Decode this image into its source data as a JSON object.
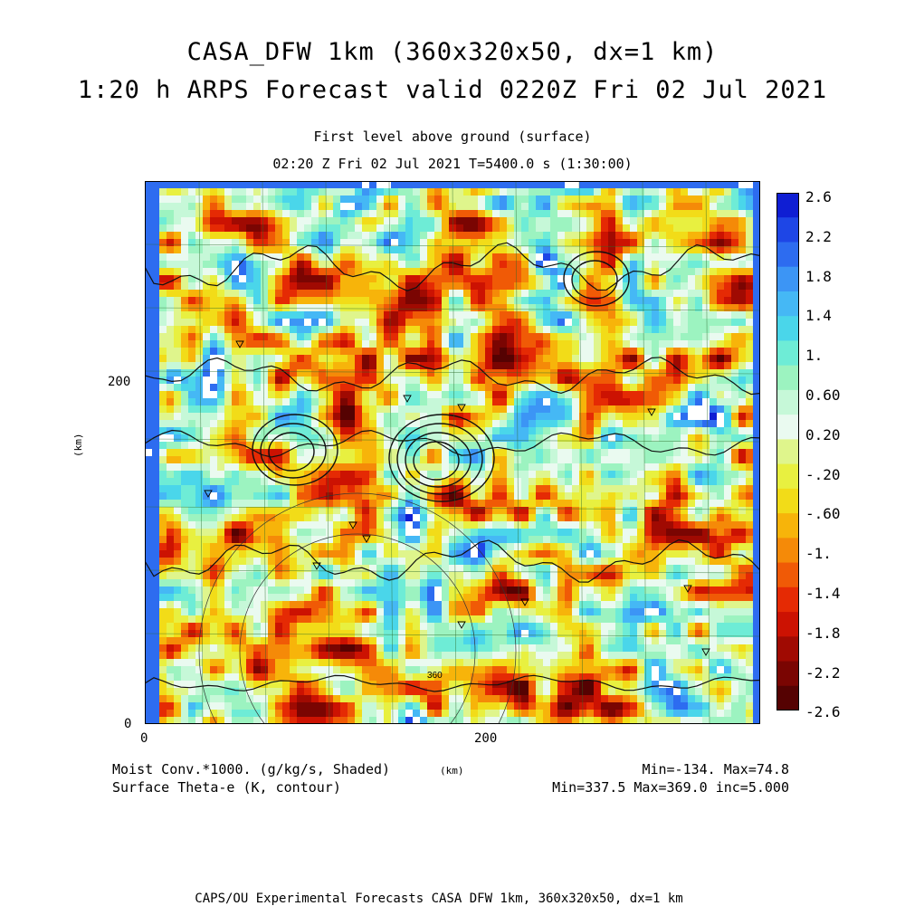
{
  "header": {
    "title_line1": "CASA_DFW 1km (360x320x50, dx=1 km)",
    "title_line2": "1:20 h ARPS Forecast valid 0220Z Fri 02 Jul 2021",
    "subtitle_line1": "First level above ground (surface)",
    "subtitle_line2": "02:20 Z Fri 02 Jul 2021    T=5400.0 s (1:30:00)"
  },
  "axes": {
    "y_unit": "(km)",
    "x_unit": "(km)",
    "x_ticks": [
      "0",
      "200"
    ],
    "y_ticks": [
      "0",
      "200"
    ]
  },
  "colorbar": {
    "labels": [
      "2.6",
      "2.2",
      "1.8",
      "1.4",
      "1.",
      "0.60",
      "0.20",
      "-.20",
      "-.60",
      "-1.",
      "-1.4",
      "-1.8",
      "-2.2",
      "-2.6"
    ],
    "colors": [
      "#0f1ed3",
      "#1e46e6",
      "#2d6cf0",
      "#3c95f5",
      "#45b8f5",
      "#4ad6ea",
      "#6eecd6",
      "#9cf3c0",
      "#c6f8d8",
      "#eafaf0",
      "#dff58c",
      "#e8f040",
      "#f2dc18",
      "#f7b40a",
      "#f58a08",
      "#f05a06",
      "#e52a04",
      "#cc1202",
      "#a00a02",
      "#7a0502",
      "#550202"
    ]
  },
  "legend": {
    "shaded_label": "Moist Conv.*1000. (g/kg/s, Shaded)",
    "contour_label": "Surface Theta-e (K, contour)",
    "shaded_stats": "Min=-134. Max=74.8",
    "contour_stats": "Min=337.5 Max=369.0 inc=5.000",
    "contour_annotation": "360"
  },
  "footer": {
    "text": "CAPS/OU Experimental Forecasts  CASA DFW 1km, 360x320x50, dx=1 km"
  },
  "chart_data": {
    "type": "heatmap",
    "title": "CASA_DFW 1km (360x320x50, dx=1 km)",
    "field_shaded": "Moist Conv.*1000. (g/kg/s, Shaded)",
    "field_contour": "Surface Theta-e (K, contour)",
    "xlim": [
      0,
      360
    ],
    "ylim": [
      0,
      320
    ],
    "shaded_min": -134,
    "shaded_max": 74.8,
    "contour_min": 337.5,
    "contour_max": 369.0,
    "contour_inc": 5.0,
    "colorbar_levels": [
      2.6,
      2.2,
      1.8,
      1.4,
      1.0,
      0.6,
      0.2,
      -0.2,
      -0.6,
      -1.0,
      -1.4,
      -1.8,
      -2.2,
      -2.6
    ]
  }
}
